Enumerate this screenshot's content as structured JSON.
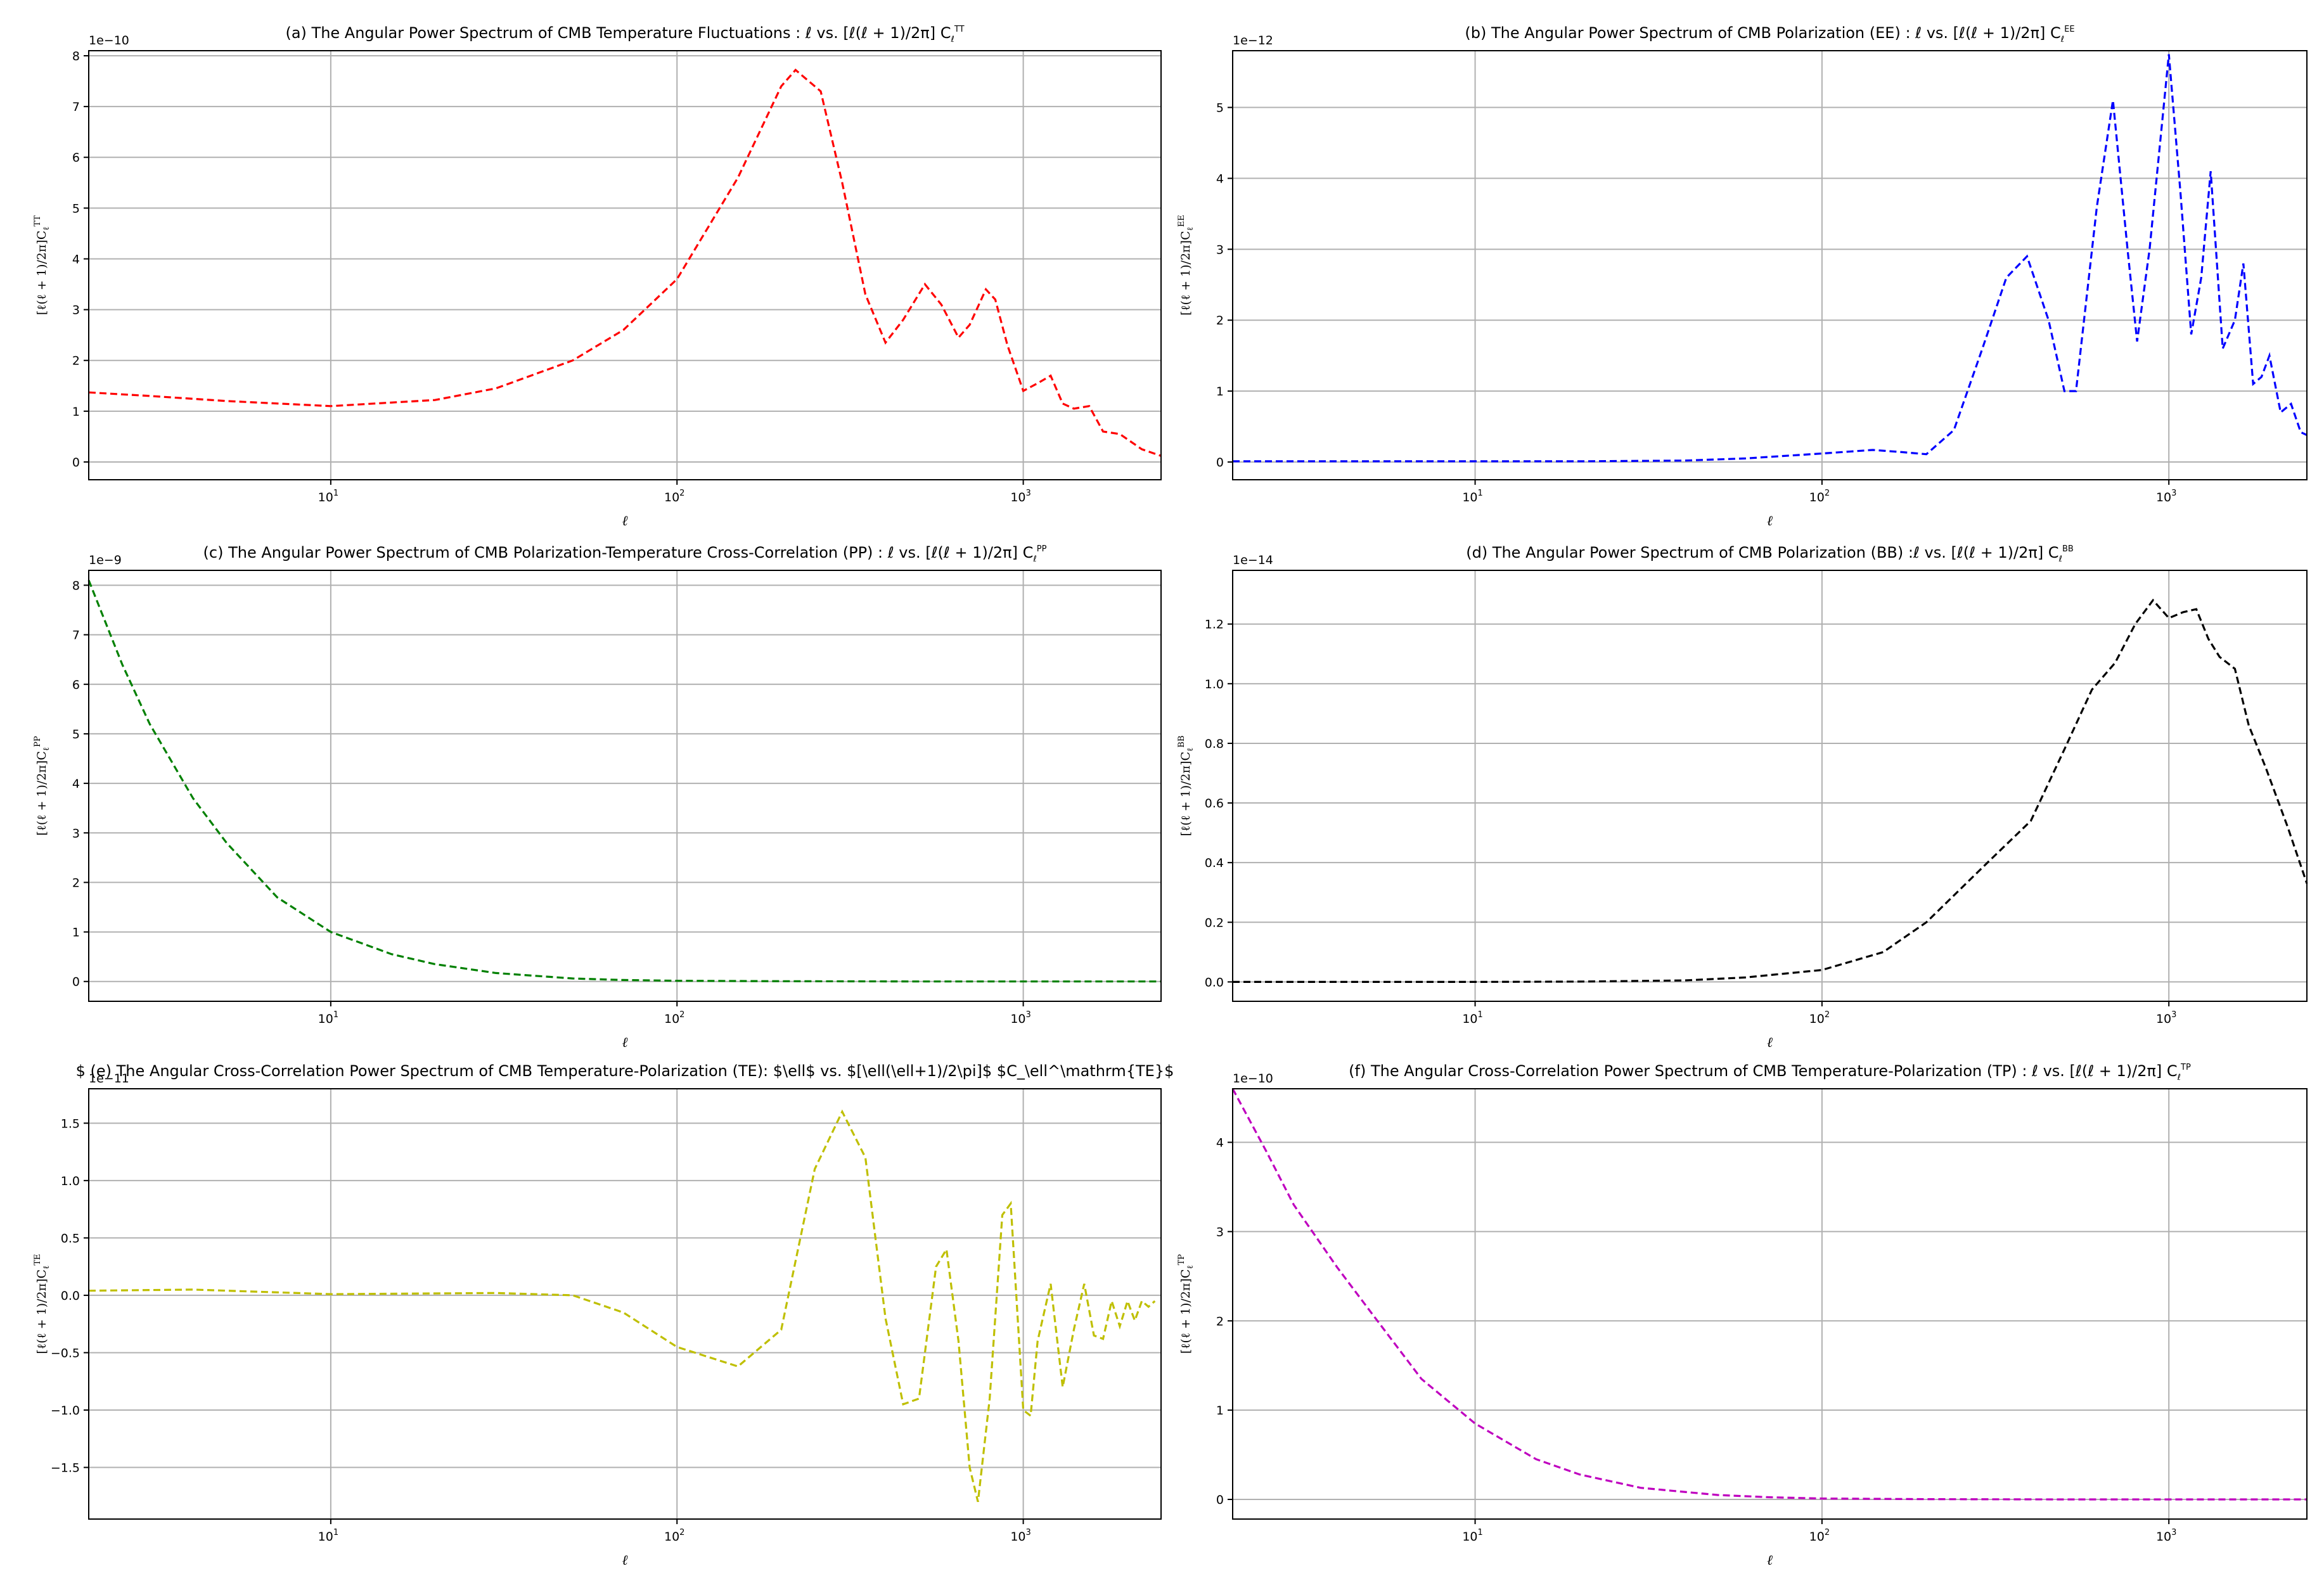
{
  "figure": {
    "background": "#ffffff"
  },
  "chart_data": [
    {
      "id": "a",
      "type": "line",
      "color": "#ff0000",
      "title": "(a) The Angular Power Spectrum of CMB Temperature Fluctuations : ℓ vs. [ℓ(ℓ + 1)/2π] C",
      "title_sup": "TT",
      "title_sub": "ℓ",
      "xlabel": "ℓ",
      "ylabel": "[ℓ(ℓ + 1)/2π]C",
      "ylabel_sup": "TT",
      "ylabel_sub": "ℓ",
      "xscale": "log",
      "xlim": [
        2,
        2500
      ],
      "ylim": [
        -0.35,
        8.1
      ],
      "xticks": [
        10,
        100,
        1000
      ],
      "xtick_labels": [
        "10",
        "10",
        "10"
      ],
      "xtick_exps": [
        "1",
        "2",
        "3"
      ],
      "yticks": [
        0,
        1,
        2,
        3,
        4,
        5,
        6,
        7,
        8
      ],
      "ytick_labels": [
        "0",
        "1",
        "2",
        "3",
        "4",
        "5",
        "6",
        "7",
        "8"
      ],
      "offset_text": "1e−10",
      "grid": true,
      "series": [
        {
          "x": [
            2,
            3,
            5,
            10,
            20,
            30,
            50,
            70,
            100,
            150,
            200,
            220,
            260,
            300,
            350,
            400,
            450,
            520,
            580,
            650,
            700,
            780,
            830,
            900,
            1000,
            1100,
            1200,
            1300,
            1400,
            1550,
            1700,
            1900,
            2200,
            2500
          ],
          "y": [
            1.37,
            1.3,
            1.2,
            1.1,
            1.22,
            1.45,
            2.0,
            2.6,
            3.6,
            5.6,
            7.4,
            7.72,
            7.3,
            5.5,
            3.3,
            2.35,
            2.8,
            3.5,
            3.1,
            2.45,
            2.7,
            3.4,
            3.2,
            2.3,
            1.4,
            1.55,
            1.7,
            1.15,
            1.05,
            1.1,
            0.6,
            0.55,
            0.25,
            0.12
          ]
        }
      ]
    },
    {
      "id": "b",
      "type": "line",
      "color": "#0000ff",
      "title": "(b) The Angular Power Spectrum of CMB Polarization (EE) : ℓ vs. [ℓ(ℓ + 1)/2π] C",
      "title_sup": "EE",
      "title_sub": "ℓ",
      "xlabel": "ℓ",
      "ylabel": "[ℓ(ℓ + 1)/2π]C",
      "ylabel_sup": "EE",
      "ylabel_sub": "ℓ",
      "xscale": "log",
      "xlim": [
        2,
        2500
      ],
      "ylim": [
        -0.25,
        5.8
      ],
      "xticks": [
        10,
        100,
        1000
      ],
      "xtick_labels": [
        "10",
        "10",
        "10"
      ],
      "xtick_exps": [
        "1",
        "2",
        "3"
      ],
      "yticks": [
        0,
        1,
        2,
        3,
        4,
        5
      ],
      "ytick_labels": [
        "0",
        "1",
        "2",
        "3",
        "4",
        "5"
      ],
      "offset_text": "1e−12",
      "grid": true,
      "series": [
        {
          "x": [
            2,
            5,
            10,
            20,
            40,
            60,
            100,
            140,
            170,
            200,
            240,
            290,
            340,
            390,
            450,
            500,
            540,
            620,
            690,
            760,
            810,
            880,
            1000,
            1080,
            1160,
            1240,
            1320,
            1430,
            1550,
            1640,
            1750,
            1850,
            1950,
            2100,
            2250,
            2400,
            2500
          ],
          "y": [
            0.01,
            0.01,
            0.01,
            0.01,
            0.02,
            0.05,
            0.12,
            0.17,
            0.14,
            0.11,
            0.45,
            1.6,
            2.6,
            2.9,
            2.0,
            1.0,
            1.0,
            3.6,
            5.1,
            3.0,
            1.7,
            3.0,
            5.75,
            3.8,
            1.8,
            2.6,
            4.1,
            1.6,
            2.0,
            2.8,
            1.1,
            1.2,
            1.5,
            0.7,
            0.82,
            0.42,
            0.38
          ]
        }
      ]
    },
    {
      "id": "c",
      "type": "line",
      "color": "#008000",
      "title": "(c) The Angular Power Spectrum of CMB Polarization-Temperature Cross-Correlation (PP) : ℓ vs. [ℓ(ℓ + 1)/2π] C",
      "title_sup": "PP",
      "title_sub": "ℓ",
      "xlabel": "ℓ",
      "ylabel": "[ℓ(ℓ + 1)/2π]C",
      "ylabel_sup": "PP",
      "ylabel_sub": "ℓ",
      "xscale": "log",
      "xlim": [
        2,
        2500
      ],
      "ylim": [
        -0.4,
        8.3
      ],
      "xticks": [
        10,
        100,
        1000
      ],
      "xtick_labels": [
        "10",
        "10",
        "10"
      ],
      "xtick_exps": [
        "1",
        "2",
        "3"
      ],
      "yticks": [
        0,
        1,
        2,
        3,
        4,
        5,
        6,
        7,
        8
      ],
      "ytick_labels": [
        "0",
        "1",
        "2",
        "3",
        "4",
        "5",
        "6",
        "7",
        "8"
      ],
      "offset_text": "1e−9",
      "grid": true,
      "series": [
        {
          "x": [
            2,
            2.5,
            3,
            4,
            5,
            7,
            10,
            15,
            20,
            30,
            50,
            70,
            100,
            200,
            500,
            1000,
            2500
          ],
          "y": [
            8.1,
            6.4,
            5.2,
            3.7,
            2.8,
            1.7,
            1.0,
            0.55,
            0.35,
            0.17,
            0.06,
            0.03,
            0.015,
            0.005,
            0.001,
            0.0,
            0.0
          ]
        }
      ]
    },
    {
      "id": "d",
      "type": "line",
      "color": "#000000",
      "title": "(d) The Angular Power Spectrum of CMB Polarization (BB) :ℓ vs. [ℓ(ℓ + 1)/2π]  C",
      "title_sup": "BB",
      "title_sub": "ℓ",
      "xlabel": "ℓ",
      "ylabel": "[ℓ(ℓ + 1)/2π]C",
      "ylabel_sup": "BB",
      "ylabel_sub": "ℓ",
      "xscale": "log",
      "xlim": [
        2,
        2500
      ],
      "ylim": [
        -0.065,
        1.38
      ],
      "xticks": [
        10,
        100,
        1000
      ],
      "xtick_labels": [
        "10",
        "10",
        "10"
      ],
      "xtick_exps": [
        "1",
        "2",
        "3"
      ],
      "yticks": [
        0,
        0.2,
        0.4,
        0.6,
        0.8,
        1.0,
        1.2
      ],
      "ytick_labels": [
        "0.0",
        "0.2",
        "0.4",
        "0.6",
        "0.8",
        "1.0",
        "1.2"
      ],
      "offset_text": "1e−14",
      "grid": true,
      "series": [
        {
          "x": [
            2,
            10,
            20,
            40,
            60,
            100,
            150,
            200,
            300,
            400,
            500,
            600,
            700,
            800,
            900,
            1000,
            1100,
            1200,
            1300,
            1400,
            1550,
            1700,
            1900,
            2200,
            2500
          ],
          "y": [
            0.0,
            0.0,
            0.001,
            0.005,
            0.015,
            0.04,
            0.1,
            0.2,
            0.4,
            0.54,
            0.78,
            0.98,
            1.07,
            1.2,
            1.28,
            1.22,
            1.24,
            1.25,
            1.15,
            1.09,
            1.05,
            0.86,
            0.72,
            0.52,
            0.33
          ]
        }
      ]
    },
    {
      "id": "e",
      "type": "line",
      "color": "#bfbf00",
      "title": "$ (e) The Angular Cross-Correlation Power Spectrum of CMB Temperature-Polarization (TE): $\\ell$ vs. $[\\ell(\\ell+1)/2\\pi]$ $C_\\ell^\\mathrm{TE}$",
      "title_sup": "",
      "title_sub": "",
      "xlabel": "ℓ",
      "ylabel": "[ℓ(ℓ + 1)/2π]C",
      "ylabel_sup": "TE",
      "ylabel_sub": "ℓ",
      "xscale": "log",
      "xlim": [
        2,
        2500
      ],
      "ylim": [
        -1.95,
        1.8
      ],
      "xticks": [
        10,
        100,
        1000
      ],
      "xtick_labels": [
        "10",
        "10",
        "10"
      ],
      "xtick_exps": [
        "1",
        "2",
        "3"
      ],
      "yticks": [
        -1.5,
        -1.0,
        -0.5,
        0.0,
        0.5,
        1.0,
        1.5
      ],
      "ytick_labels": [
        "−1.5",
        "−1.0",
        "−0.5",
        "0.0",
        "0.5",
        "1.0",
        "1.5"
      ],
      "offset_text": "1e−11",
      "grid": true,
      "series": [
        {
          "x": [
            2,
            4,
            10,
            30,
            50,
            70,
            100,
            150,
            200,
            250,
            300,
            350,
            400,
            450,
            500,
            560,
            600,
            650,
            700,
            740,
            800,
            870,
            920,
            1000,
            1050,
            1100,
            1200,
            1300,
            1400,
            1500,
            1600,
            1700,
            1800,
            1900,
            2000,
            2100,
            2200,
            2300,
            2400
          ],
          "y": [
            0.04,
            0.05,
            0.01,
            0.02,
            0.0,
            -0.15,
            -0.45,
            -0.62,
            -0.3,
            1.1,
            1.6,
            1.2,
            -0.2,
            -0.95,
            -0.9,
            0.25,
            0.4,
            -0.4,
            -1.5,
            -1.8,
            -0.9,
            0.7,
            0.8,
            -1.0,
            -1.05,
            -0.4,
            0.1,
            -0.8,
            -0.3,
            0.1,
            -0.35,
            -0.38,
            -0.05,
            -0.27,
            -0.05,
            -0.22,
            -0.05,
            -0.1,
            -0.05
          ]
        }
      ]
    },
    {
      "id": "f",
      "type": "line",
      "color": "#bf00bf",
      "title": "(f) The Angular Cross-Correlation Power Spectrum of CMB Temperature-Polarization (TP) : ℓ vs. [ℓ(ℓ + 1)/2π] C",
      "title_sup": "TP",
      "title_sub": "ℓ",
      "xlabel": "ℓ",
      "ylabel": "[ℓ(ℓ + 1)/2π]C",
      "ylabel_sup": "TP",
      "ylabel_sub": "ℓ",
      "xscale": "log",
      "xlim": [
        2,
        2500
      ],
      "ylim": [
        -0.22,
        4.6
      ],
      "xticks": [
        10,
        100,
        1000
      ],
      "xtick_labels": [
        "10",
        "10",
        "10"
      ],
      "xtick_exps": [
        "1",
        "2",
        "3"
      ],
      "yticks": [
        0,
        1,
        2,
        3,
        4
      ],
      "ytick_labels": [
        "0",
        "1",
        "2",
        "3",
        "4"
      ],
      "offset_text": "1e−10",
      "grid": true,
      "series": [
        {
          "x": [
            2,
            2.5,
            3,
            4,
            5,
            7,
            10,
            15,
            20,
            30,
            50,
            70,
            100,
            200,
            500,
            1000,
            2500
          ],
          "y": [
            4.6,
            3.9,
            3.3,
            2.6,
            2.1,
            1.35,
            0.85,
            0.45,
            0.28,
            0.13,
            0.05,
            0.025,
            0.01,
            0.003,
            0.0,
            0.0,
            0.0
          ]
        }
      ]
    }
  ]
}
